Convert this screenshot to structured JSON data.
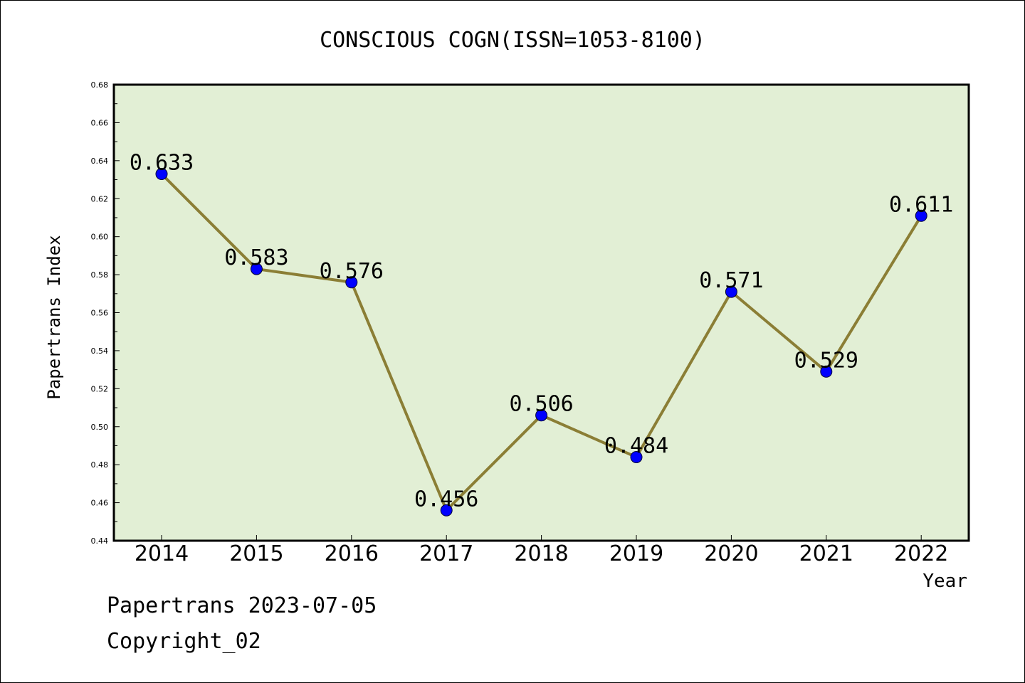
{
  "chart_data": {
    "type": "line",
    "title": "CONSCIOUS COGN(ISSN=1053-8100)",
    "xlabel": "Year",
    "ylabel": "Papertrans Index",
    "categories": [
      "2014",
      "2015",
      "2016",
      "2017",
      "2018",
      "2019",
      "2020",
      "2021",
      "2022"
    ],
    "series": [
      {
        "values": [
          0.633,
          0.583,
          0.576,
          0.456,
          0.506,
          0.484,
          0.571,
          0.529,
          0.611
        ],
        "data_labels": [
          "0.633",
          "0.583",
          "0.576",
          "0.456",
          "0.506",
          "0.484",
          "0.571",
          "0.529",
          "0.611"
        ]
      }
    ],
    "ylim": [
      0.44,
      0.68
    ],
    "yticks": [
      "0.44",
      "0.46",
      "0.48",
      "0.50",
      "0.52",
      "0.54",
      "0.56",
      "0.58",
      "0.60",
      "0.62",
      "0.64",
      "0.66",
      "0.68"
    ],
    "grid": false,
    "colors": {
      "plot_background": "#e2efd5",
      "line": "#8b7e35",
      "marker": "#0000ff"
    }
  },
  "footer": {
    "line1": "Papertrans 2023-07-05",
    "line2": "Copyright_02"
  }
}
